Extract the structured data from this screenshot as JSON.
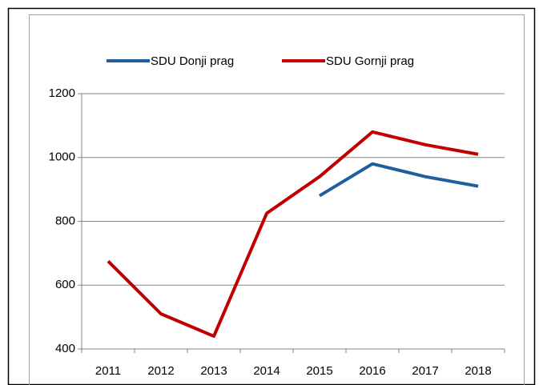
{
  "chart_data": {
    "type": "line",
    "categories": [
      "2011",
      "2012",
      "2013",
      "2014",
      "2015",
      "2016",
      "2017",
      "2018"
    ],
    "series": [
      {
        "name": "SDU Donji prag",
        "color": "#1f5fa0",
        "values": [
          null,
          null,
          null,
          null,
          880,
          980,
          940,
          910
        ]
      },
      {
        "name": "SDU Gornji prag",
        "color": "#c00000",
        "values": [
          675,
          510,
          440,
          825,
          940,
          1080,
          1040,
          1010
        ]
      }
    ],
    "ylim": [
      400,
      1200
    ],
    "yticks": [
      400,
      600,
      800,
      1000,
      1200
    ],
    "grid": true,
    "legend": "top"
  }
}
